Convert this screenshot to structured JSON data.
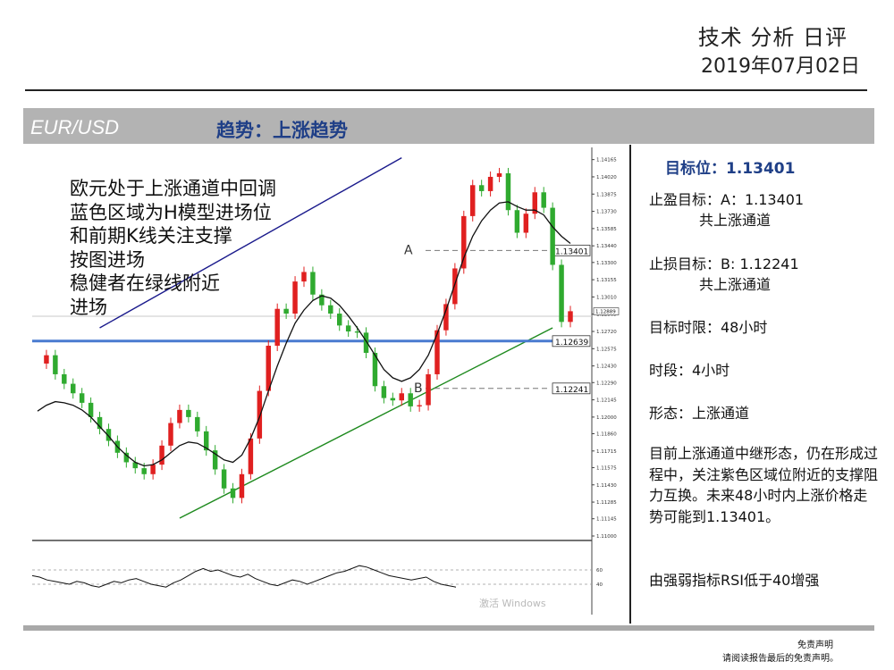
{
  "header": {
    "title": "技术 分析 日评",
    "date": "2019年07月02日"
  },
  "band": {
    "pair": "EUR/USD",
    "trend": "趋势：上涨趋势"
  },
  "overlay_lines": [
    "欧元处于上涨通道中回调",
    "蓝色区域为H模型进场位",
    "和前期K线关注支撑",
    "按图进场",
    "稳健者在绿线附近",
    "进场"
  ],
  "panel": {
    "target": "目标位：1.13401",
    "take_profit": "止盈目标：A：1.13401",
    "take_profit_sub": "共上涨通道",
    "stop_loss": "止损目标：B: 1.12241",
    "stop_loss_sub": "共上涨通道",
    "time_limit": "目标时限：48小时",
    "timeframe": "时段：4小时",
    "pattern": "形态：上涨通道",
    "analysis": "目前上涨通道中继形态，仍在形成过程中，关注紫色区域位附近的支撑阻力互换。未来48小时内上涨价格走势可能到1.13401。",
    "rsi_note": "由强弱指标RSI低于40增强"
  },
  "disclaimer": {
    "title": "免责声明",
    "text": "请阅读报告最后的免责声明。"
  },
  "watermark": "激活 Windows",
  "colors": {
    "up": "#e02020",
    "down": "#2faa2f",
    "upper_channel": "#1a1a8c",
    "lower_channel": "#1e8a1e",
    "support_line": "#4a7bd0",
    "band": "#b3b3b3",
    "accent": "#1f3f87"
  },
  "chart_data": {
    "type": "candlestick",
    "timeframe": "4小时",
    "ylim": [
      1.11,
      1.1423
    ],
    "y_ticks": [
      "1.14165",
      "1.14020",
      "1.13875",
      "1.13730",
      "1.13585",
      "1.13440",
      "1.13300",
      "1.13155",
      "1.13010",
      "1.12865",
      "1.12720",
      "1.12575",
      "1.12430",
      "1.12290",
      "1.12145",
      "1.12000",
      "1.11860",
      "1.11715",
      "1.11575",
      "1.11430",
      "1.11285",
      "1.11145",
      "1.11000"
    ],
    "price_labels": [
      {
        "label": "1.13401",
        "value": 1.13401,
        "marker": "A",
        "style": "dashed"
      },
      {
        "label": "1.12639",
        "value": 1.12639,
        "style": "solid-blue"
      },
      {
        "label": "1.12241",
        "value": 1.12241,
        "marker": "B",
        "style": "dashed"
      }
    ],
    "current_price": 1.12889,
    "close_series": [
      1.1245,
      1.1252,
      1.1236,
      1.1228,
      1.122,
      1.1212,
      1.12,
      1.119,
      1.118,
      1.117,
      1.1162,
      1.1157,
      1.1152,
      1.116,
      1.1176,
      1.1195,
      1.1206,
      1.12,
      1.1188,
      1.1172,
      1.1156,
      1.114,
      1.1132,
      1.1152,
      1.1182,
      1.1222,
      1.126,
      1.1291,
      1.1287,
      1.1314,
      1.1322,
      1.1303,
      1.1294,
      1.1287,
      1.1277,
      1.1272,
      1.1271,
      1.1254,
      1.1226,
      1.1216,
      1.1214,
      1.122,
      1.1209,
      1.121,
      1.1236,
      1.1273,
      1.1295,
      1.1325,
      1.1369,
      1.1395,
      1.139,
      1.1402,
      1.1405,
      1.1374,
      1.1355,
      1.1371,
      1.1389,
      1.1376,
      1.1328,
      1.128,
      1.1289
    ],
    "moving_average": {
      "description": "black smoothed average line",
      "values": [
        1.1205,
        1.121,
        1.1213,
        1.1212,
        1.121,
        1.1206,
        1.12,
        1.1192,
        1.1184,
        1.1175,
        1.1168,
        1.1162,
        1.1159,
        1.116,
        1.1164,
        1.117,
        1.1176,
        1.1179,
        1.1178,
        1.1174,
        1.1169,
        1.1164,
        1.1162,
        1.1168,
        1.1182,
        1.12,
        1.1222,
        1.1243,
        1.1262,
        1.1279,
        1.129,
        1.1298,
        1.1302,
        1.13,
        1.1294,
        1.1285,
        1.1275,
        1.1264,
        1.1252,
        1.124,
        1.1233,
        1.123,
        1.1233,
        1.124,
        1.1252,
        1.127,
        1.129,
        1.1312,
        1.1334,
        1.1352,
        1.1365,
        1.1374,
        1.138,
        1.1381,
        1.1377,
        1.1374,
        1.1374,
        1.137,
        1.136,
        1.1352,
        1.1346
      ]
    },
    "channel": {
      "upper": {
        "from": {
          "index": 7,
          "price": 1.1275
        },
        "to": {
          "index": 41,
          "price": 1.1418
        }
      },
      "lower": {
        "from": {
          "index": 16,
          "price": 1.1115
        },
        "to": {
          "index": 58,
          "price": 1.1275
        }
      }
    },
    "rsi": {
      "levels": [
        60,
        40
      ],
      "values": [
        52,
        50,
        46,
        44,
        42,
        40,
        44,
        42,
        38,
        36,
        40,
        44,
        42,
        46,
        48,
        44,
        40,
        38,
        36,
        42,
        46,
        52,
        58,
        62,
        58,
        60,
        56,
        52,
        50,
        54,
        48,
        44,
        40,
        38,
        42,
        46,
        44,
        40,
        44,
        48,
        52,
        56,
        58,
        62,
        66,
        64,
        60,
        56,
        52,
        50,
        48,
        46,
        48,
        50,
        44,
        40,
        38,
        36
      ]
    }
  }
}
